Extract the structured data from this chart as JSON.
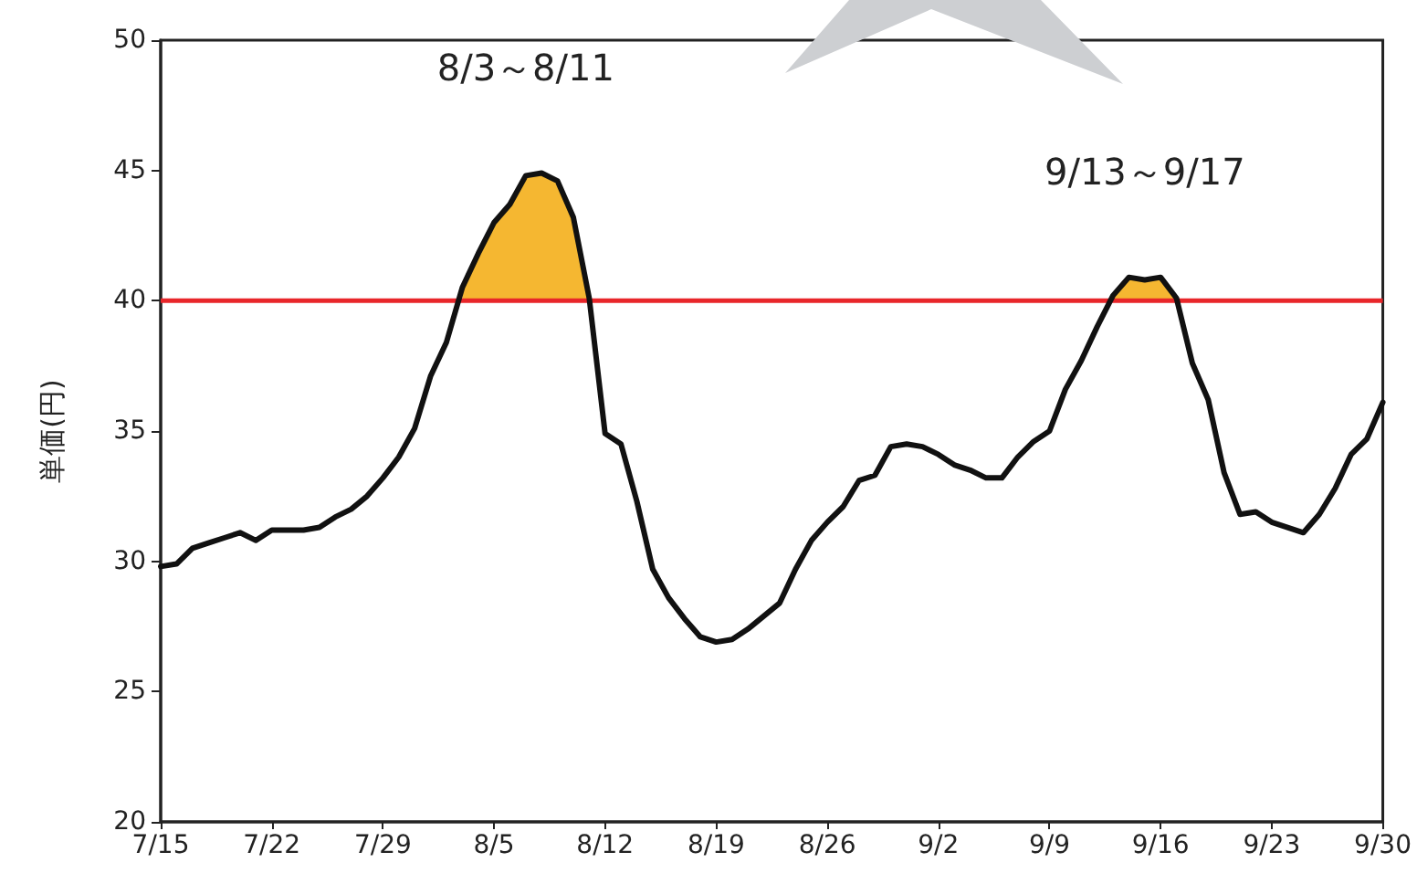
{
  "chart_data": {
    "type": "line",
    "ylabel": "単価(円)",
    "x": [
      "--07-15",
      "--07-16",
      "--07-17",
      "--07-18",
      "--07-19",
      "--07-20",
      "--07-21",
      "--07-22",
      "--07-23",
      "--07-24",
      "--07-25",
      "--07-26",
      "--07-27",
      "--07-28",
      "--07-29",
      "--07-30",
      "--07-31",
      "--08-01",
      "--08-02",
      "--08-03",
      "--08-04",
      "--08-05",
      "--08-06",
      "--08-07",
      "--08-08",
      "--08-09",
      "--08-10",
      "--08-11",
      "--08-12",
      "--08-13",
      "--08-14",
      "--08-15",
      "--08-16",
      "--08-17",
      "--08-18",
      "--08-19",
      "--08-20",
      "--08-21",
      "--08-22",
      "--08-23",
      "--08-24",
      "--08-25",
      "--08-26",
      "--08-27",
      "--08-28",
      "--08-29",
      "--08-30",
      "--08-31",
      "--09-01",
      "--09-02",
      "--09-03",
      "--09-04",
      "--09-05",
      "--09-06",
      "--09-07",
      "--09-08",
      "--09-09",
      "--09-10",
      "--09-11",
      "--09-12",
      "--09-13",
      "--09-14",
      "--09-15",
      "--09-16",
      "--09-17",
      "--09-18",
      "--09-19",
      "--09-20",
      "--09-21",
      "--09-22",
      "--09-23",
      "--09-24",
      "--09-25",
      "--09-26",
      "--09-27",
      "--09-28",
      "--09-29",
      "--09-30"
    ],
    "series": [
      {
        "color": "#111111",
        "values": [
          29.8,
          29.9,
          30.5,
          30.7,
          30.9,
          31.1,
          30.8,
          31.2,
          31.2,
          31.2,
          31.3,
          31.7,
          32.0,
          32.5,
          33.2,
          34.0,
          35.1,
          37.1,
          38.4,
          40.5,
          41.8,
          43.0,
          43.7,
          44.8,
          44.9,
          44.6,
          43.2,
          40.1,
          34.9,
          34.5,
          32.3,
          29.7,
          28.6,
          27.8,
          27.1,
          26.9,
          27.0,
          27.4,
          27.9,
          28.4,
          29.7,
          30.8,
          31.5,
          32.1,
          33.1,
          33.3,
          34.4,
          34.5,
          34.4,
          34.1,
          33.7,
          33.5,
          33.2,
          33.2,
          34.0,
          34.6,
          35.0,
          36.6,
          37.7,
          39.0,
          40.2,
          40.9,
          40.8,
          40.9,
          40.1,
          37.6,
          36.2,
          33.4,
          31.8,
          31.9,
          31.5,
          31.3,
          31.1,
          31.8,
          32.8,
          34.1,
          34.7,
          36.1
        ]
      },
      {
        "type": "area",
        "color": "#f5b731",
        "x": [
          "--08-03",
          "--08-04",
          "--08-05",
          "--08-06",
          "--08-07",
          "--08-08",
          "--08-09",
          "--08-10",
          "--08-11"
        ],
        "values": [
          40.5,
          41.8,
          43.0,
          43.7,
          44.8,
          44.9,
          44.6,
          43.2,
          40.1
        ]
      },
      {
        "type": "area",
        "color": "#f5b731",
        "x": [
          "--09-13",
          "--09-14",
          "--09-15",
          "--09-16",
          "--09-17"
        ],
        "values": [
          40.2,
          40.9,
          40.8,
          40.9,
          40.1
        ]
      }
    ],
    "xlim": [
      "--07-15",
      "--09-30"
    ],
    "xticks": [
      {
        "value": "--07-15",
        "label": "7/15"
      },
      {
        "value": "--07-22",
        "label": "7/22"
      },
      {
        "value": "--07-29",
        "label": "7/29"
      },
      {
        "value": "--08-05",
        "label": "8/5"
      },
      {
        "value": "--08-12",
        "label": "8/12"
      },
      {
        "value": "--08-19",
        "label": "8/19"
      },
      {
        "value": "--08-26",
        "label": "8/26"
      },
      {
        "value": "--09-02",
        "label": "9/2"
      },
      {
        "value": "--09-09",
        "label": "9/9"
      },
      {
        "value": "--09-16",
        "label": "9/16"
      },
      {
        "value": "--09-23",
        "label": "9/23"
      },
      {
        "value": "--09-30",
        "label": "9/30"
      }
    ],
    "ylim": [
      20,
      50
    ],
    "yticks": [
      20,
      25,
      30,
      35,
      40,
      45,
      50
    ],
    "ref_lines": [
      {
        "axis": "y",
        "value": 40,
        "color": "#e8262a"
      }
    ],
    "annotations": [
      "8/3～8/11",
      "9/13～9/17"
    ],
    "marker": "none",
    "line_style": "solid"
  }
}
